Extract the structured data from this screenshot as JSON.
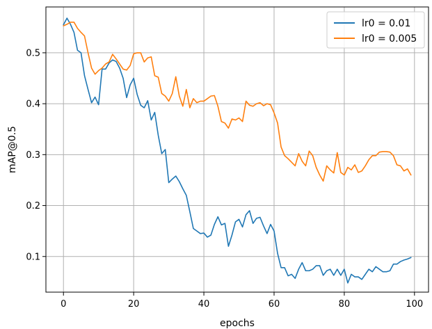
{
  "chart_data": {
    "type": "line",
    "xlabel": "epochs",
    "ylabel": "mAP@0.5",
    "xlim": [
      -5,
      104
    ],
    "ylim": [
      0.03,
      0.59
    ],
    "xticks": [
      0,
      20,
      40,
      60,
      80,
      100
    ],
    "yticks": [
      0.1,
      0.2,
      0.3,
      0.4,
      0.5
    ],
    "ytick_labels": [
      "0.1",
      "0.2",
      "0.3",
      "0.4",
      "0.5"
    ],
    "xtick_labels": [
      "0",
      "20",
      "40",
      "60",
      "80",
      "100"
    ],
    "grid": true,
    "legend_position": "top-right",
    "series": [
      {
        "name": "lr0 = 0.01",
        "color": "#1f77b4",
        "points": [
          [
            0,
            0.555
          ],
          [
            1,
            0.568
          ],
          [
            2,
            0.556
          ],
          [
            3,
            0.54
          ],
          [
            4,
            0.505
          ],
          [
            5,
            0.5
          ],
          [
            6,
            0.455
          ],
          [
            7,
            0.428
          ],
          [
            8,
            0.402
          ],
          [
            9,
            0.413
          ],
          [
            10,
            0.398
          ],
          [
            11,
            0.468
          ],
          [
            12,
            0.468
          ],
          [
            13,
            0.48
          ],
          [
            14,
            0.486
          ],
          [
            15,
            0.483
          ],
          [
            16,
            0.47
          ],
          [
            17,
            0.45
          ],
          [
            18,
            0.412
          ],
          [
            19,
            0.437
          ],
          [
            20,
            0.45
          ],
          [
            21,
            0.418
          ],
          [
            22,
            0.397
          ],
          [
            23,
            0.392
          ],
          [
            24,
            0.406
          ],
          [
            25,
            0.368
          ],
          [
            26,
            0.383
          ],
          [
            27,
            0.338
          ],
          [
            28,
            0.302
          ],
          [
            29,
            0.31
          ],
          [
            30,
            0.245
          ],
          [
            31,
            0.252
          ],
          [
            32,
            0.258
          ],
          [
            33,
            0.247
          ],
          [
            34,
            0.233
          ],
          [
            35,
            0.22
          ],
          [
            36,
            0.188
          ],
          [
            37,
            0.155
          ],
          [
            38,
            0.15
          ],
          [
            39,
            0.145
          ],
          [
            40,
            0.146
          ],
          [
            41,
            0.138
          ],
          [
            42,
            0.142
          ],
          [
            43,
            0.163
          ],
          [
            44,
            0.178
          ],
          [
            45,
            0.162
          ],
          [
            46,
            0.165
          ],
          [
            47,
            0.12
          ],
          [
            48,
            0.142
          ],
          [
            49,
            0.168
          ],
          [
            50,
            0.173
          ],
          [
            51,
            0.158
          ],
          [
            52,
            0.182
          ],
          [
            53,
            0.19
          ],
          [
            54,
            0.165
          ],
          [
            55,
            0.175
          ],
          [
            56,
            0.177
          ],
          [
            57,
            0.16
          ],
          [
            58,
            0.145
          ],
          [
            59,
            0.163
          ],
          [
            60,
            0.15
          ],
          [
            61,
            0.106
          ],
          [
            62,
            0.078
          ],
          [
            63,
            0.078
          ],
          [
            64,
            0.062
          ],
          [
            65,
            0.065
          ],
          [
            66,
            0.057
          ],
          [
            67,
            0.075
          ],
          [
            68,
            0.088
          ],
          [
            69,
            0.072
          ],
          [
            70,
            0.072
          ],
          [
            71,
            0.075
          ],
          [
            72,
            0.082
          ],
          [
            73,
            0.082
          ],
          [
            74,
            0.063
          ],
          [
            75,
            0.072
          ],
          [
            76,
            0.075
          ],
          [
            77,
            0.063
          ],
          [
            78,
            0.075
          ],
          [
            79,
            0.063
          ],
          [
            80,
            0.075
          ],
          [
            81,
            0.048
          ],
          [
            82,
            0.065
          ],
          [
            83,
            0.06
          ],
          [
            84,
            0.06
          ],
          [
            85,
            0.055
          ],
          [
            86,
            0.065
          ],
          [
            87,
            0.075
          ],
          [
            88,
            0.07
          ],
          [
            89,
            0.08
          ],
          [
            90,
            0.075
          ],
          [
            91,
            0.07
          ],
          [
            92,
            0.07
          ],
          [
            93,
            0.072
          ],
          [
            94,
            0.085
          ],
          [
            95,
            0.085
          ],
          [
            96,
            0.09
          ],
          [
            97,
            0.093
          ],
          [
            98,
            0.095
          ],
          [
            99,
            0.098
          ]
        ]
      },
      {
        "name": "lr0 = 0.005",
        "color": "#ff7f0e",
        "points": [
          [
            0,
            0.553
          ],
          [
            1,
            0.556
          ],
          [
            2,
            0.56
          ],
          [
            3,
            0.56
          ],
          [
            4,
            0.548
          ],
          [
            5,
            0.54
          ],
          [
            6,
            0.533
          ],
          [
            7,
            0.5
          ],
          [
            8,
            0.47
          ],
          [
            9,
            0.458
          ],
          [
            10,
            0.465
          ],
          [
            11,
            0.47
          ],
          [
            12,
            0.478
          ],
          [
            13,
            0.482
          ],
          [
            14,
            0.497
          ],
          [
            15,
            0.488
          ],
          [
            16,
            0.478
          ],
          [
            17,
            0.468
          ],
          [
            18,
            0.466
          ],
          [
            19,
            0.475
          ],
          [
            20,
            0.498
          ],
          [
            21,
            0.5
          ],
          [
            22,
            0.5
          ],
          [
            23,
            0.482
          ],
          [
            24,
            0.49
          ],
          [
            25,
            0.492
          ],
          [
            26,
            0.455
          ],
          [
            27,
            0.452
          ],
          [
            28,
            0.42
          ],
          [
            29,
            0.415
          ],
          [
            30,
            0.405
          ],
          [
            31,
            0.42
          ],
          [
            32,
            0.453
          ],
          [
            33,
            0.415
          ],
          [
            34,
            0.395
          ],
          [
            35,
            0.428
          ],
          [
            36,
            0.392
          ],
          [
            37,
            0.41
          ],
          [
            38,
            0.402
          ],
          [
            39,
            0.405
          ],
          [
            40,
            0.405
          ],
          [
            41,
            0.41
          ],
          [
            42,
            0.415
          ],
          [
            43,
            0.416
          ],
          [
            44,
            0.395
          ],
          [
            45,
            0.365
          ],
          [
            46,
            0.362
          ],
          [
            47,
            0.352
          ],
          [
            48,
            0.37
          ],
          [
            49,
            0.368
          ],
          [
            50,
            0.372
          ],
          [
            51,
            0.365
          ],
          [
            52,
            0.405
          ],
          [
            53,
            0.397
          ],
          [
            54,
            0.395
          ],
          [
            55,
            0.4
          ],
          [
            56,
            0.402
          ],
          [
            57,
            0.396
          ],
          [
            58,
            0.4
          ],
          [
            59,
            0.398
          ],
          [
            60,
            0.382
          ],
          [
            61,
            0.362
          ],
          [
            62,
            0.315
          ],
          [
            63,
            0.298
          ],
          [
            64,
            0.292
          ],
          [
            65,
            0.285
          ],
          [
            66,
            0.278
          ],
          [
            67,
            0.302
          ],
          [
            68,
            0.287
          ],
          [
            69,
            0.278
          ],
          [
            70,
            0.307
          ],
          [
            71,
            0.298
          ],
          [
            72,
            0.275
          ],
          [
            73,
            0.26
          ],
          [
            74,
            0.248
          ],
          [
            75,
            0.278
          ],
          [
            76,
            0.27
          ],
          [
            77,
            0.264
          ],
          [
            78,
            0.304
          ],
          [
            79,
            0.265
          ],
          [
            80,
            0.26
          ],
          [
            81,
            0.275
          ],
          [
            82,
            0.27
          ],
          [
            83,
            0.28
          ],
          [
            84,
            0.265
          ],
          [
            85,
            0.268
          ],
          [
            86,
            0.278
          ],
          [
            87,
            0.29
          ],
          [
            88,
            0.298
          ],
          [
            89,
            0.298
          ],
          [
            90,
            0.305
          ],
          [
            91,
            0.306
          ],
          [
            92,
            0.306
          ],
          [
            93,
            0.305
          ],
          [
            94,
            0.298
          ],
          [
            95,
            0.28
          ],
          [
            96,
            0.278
          ],
          [
            97,
            0.268
          ],
          [
            98,
            0.272
          ],
          [
            99,
            0.26
          ]
        ]
      }
    ]
  }
}
